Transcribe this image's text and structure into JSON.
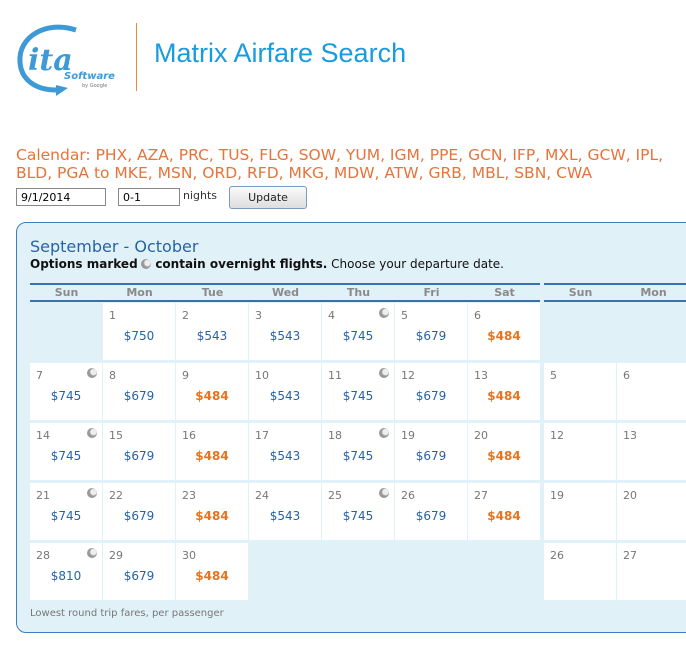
{
  "header": {
    "logo_text": "ita Software by Google",
    "title": "Matrix Airfare Search"
  },
  "search": {
    "route": "Calendar: PHX, AZA, PRC, TUS, FLG, SOW, YUM, IGM, PPE, GCN, IFP, MXL, GCW, IPL, BLD, PGA to MKE, MSN, ORD, RFD, MKG, MDW, ATW, GRB, MBL, SBN, CWA",
    "date": "9/1/2014",
    "nights": "0-1",
    "nights_label": "nights",
    "update_label": "Update"
  },
  "calendar": {
    "range": "September - October",
    "note_bold_1": "Options marked",
    "note_bold_2": "contain overnight flights.",
    "note_rest": "Choose your departure date.",
    "weekdays": [
      "Sun",
      "Mon",
      "Tue",
      "Wed",
      "Thu",
      "Fri",
      "Sat"
    ],
    "weekdays2": [
      "Sun",
      "Mon"
    ],
    "weeks": [
      [
        null,
        {
          "d": "1",
          "f": "$750"
        },
        {
          "d": "2",
          "f": "$543"
        },
        {
          "d": "3",
          "f": "$543"
        },
        {
          "d": "4",
          "f": "$745",
          "o": true
        },
        {
          "d": "5",
          "f": "$679"
        },
        {
          "d": "6",
          "f": "$484",
          "low": true
        }
      ],
      [
        {
          "d": "7",
          "f": "$745",
          "o": true
        },
        {
          "d": "8",
          "f": "$679"
        },
        {
          "d": "9",
          "f": "$484",
          "low": true
        },
        {
          "d": "10",
          "f": "$543"
        },
        {
          "d": "11",
          "f": "$745",
          "o": true
        },
        {
          "d": "12",
          "f": "$679"
        },
        {
          "d": "13",
          "f": "$484",
          "low": true
        }
      ],
      [
        {
          "d": "14",
          "f": "$745",
          "o": true
        },
        {
          "d": "15",
          "f": "$679"
        },
        {
          "d": "16",
          "f": "$484",
          "low": true
        },
        {
          "d": "17",
          "f": "$543"
        },
        {
          "d": "18",
          "f": "$745",
          "o": true
        },
        {
          "d": "19",
          "f": "$679"
        },
        {
          "d": "20",
          "f": "$484",
          "low": true
        }
      ],
      [
        {
          "d": "21",
          "f": "$745",
          "o": true
        },
        {
          "d": "22",
          "f": "$679"
        },
        {
          "d": "23",
          "f": "$484",
          "low": true
        },
        {
          "d": "24",
          "f": "$543"
        },
        {
          "d": "25",
          "f": "$745",
          "o": true
        },
        {
          "d": "26",
          "f": "$679"
        },
        {
          "d": "27",
          "f": "$484",
          "low": true
        }
      ],
      [
        {
          "d": "28",
          "f": "$810",
          "o": true
        },
        {
          "d": "29",
          "f": "$679"
        },
        {
          "d": "30",
          "f": "$484",
          "low": true
        },
        null,
        null,
        null,
        null
      ]
    ],
    "weeks2": [
      [
        null,
        null
      ],
      [
        {
          "d": "5"
        },
        {
          "d": "6"
        }
      ],
      [
        {
          "d": "12"
        },
        {
          "d": "13"
        }
      ],
      [
        {
          "d": "19"
        },
        {
          "d": "20"
        }
      ],
      [
        {
          "d": "26"
        },
        {
          "d": "27"
        }
      ]
    ],
    "footer": "Lowest round trip fares, per passenger"
  },
  "colors": {
    "accent_orange": "#e8733a",
    "accent_blue": "#2563a8",
    "panel_bg": "#e1f1f8"
  }
}
